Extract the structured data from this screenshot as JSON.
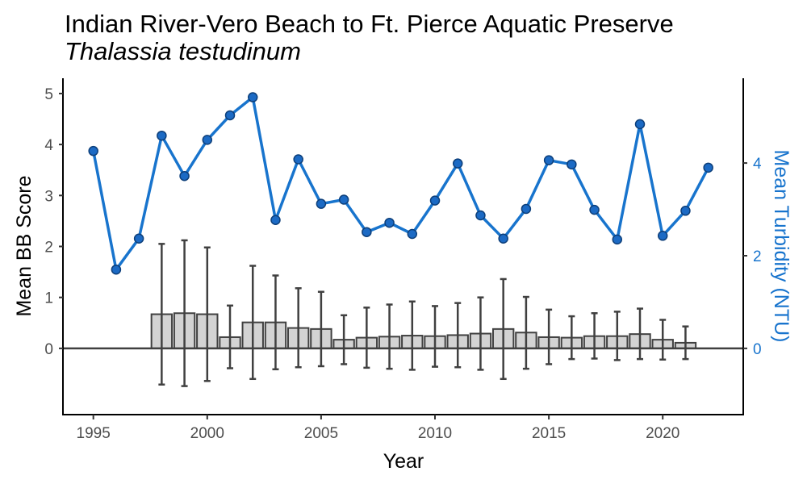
{
  "chart_data": {
    "type": "bar+line",
    "title": "Indian River-Vero Beach to Ft. Pierce Aquatic Preserve",
    "subtitle": "Thalassia testudinum",
    "xlabel": "Year",
    "ylabel_left": "Mean BB Score",
    "ylabel_right": "Mean Turbidity (NTU)",
    "x_ticks": [
      1995,
      2000,
      2005,
      2010,
      2015,
      2020
    ],
    "y_left_ticks": [
      0,
      1,
      2,
      3,
      4,
      5
    ],
    "y_right_ticks": [
      0,
      2,
      4
    ],
    "xlim": [
      1993.7,
      2023.5
    ],
    "ylim_left": [
      -1.3,
      5.3
    ],
    "ylim_right": [
      -1.43,
      5.83
    ],
    "grid": false,
    "colors": {
      "bar_fill": "#d3d3d3",
      "bar_stroke": "#404040",
      "errorbar": "#404040",
      "line": "#1874cd",
      "point_fill": "#1c6ac4",
      "point_stroke": "#0d3f7a",
      "axis": "#000000",
      "zero_line": "#404040"
    },
    "bb_score": {
      "x": [
        1998,
        1999,
        2000,
        2001,
        2002,
        2003,
        2004,
        2005,
        2006,
        2007,
        2008,
        2009,
        2010,
        2011,
        2012,
        2013,
        2014,
        2015,
        2016,
        2017,
        2018,
        2019,
        2020,
        2021
      ],
      "mean": [
        0.67,
        0.69,
        0.67,
        0.22,
        0.51,
        0.51,
        0.4,
        0.38,
        0.17,
        0.21,
        0.23,
        0.25,
        0.24,
        0.26,
        0.29,
        0.38,
        0.31,
        0.22,
        0.21,
        0.24,
        0.24,
        0.28,
        0.17,
        0.11
      ],
      "lower": [
        -0.71,
        -0.74,
        -0.64,
        -0.39,
        -0.6,
        -0.41,
        -0.37,
        -0.35,
        -0.31,
        -0.38,
        -0.4,
        -0.42,
        -0.36,
        -0.37,
        -0.42,
        -0.6,
        -0.4,
        -0.31,
        -0.21,
        -0.2,
        -0.23,
        -0.21,
        -0.22,
        -0.21
      ],
      "upper": [
        2.05,
        2.12,
        1.98,
        0.84,
        1.62,
        1.43,
        1.18,
        1.11,
        0.65,
        0.8,
        0.86,
        0.92,
        0.83,
        0.89,
        1.0,
        1.36,
        1.01,
        0.76,
        0.63,
        0.69,
        0.72,
        0.78,
        0.56,
        0.43
      ]
    },
    "turbidity": {
      "x": [
        1995,
        1996,
        1997,
        1998,
        1999,
        2000,
        2001,
        2002,
        2003,
        2004,
        2005,
        2006,
        2007,
        2008,
        2009,
        2010,
        2011,
        2012,
        2013,
        2014,
        2015,
        2016,
        2017,
        2018,
        2019,
        2020,
        2021,
        2022
      ],
      "values": [
        4.26,
        1.7,
        2.37,
        4.59,
        3.72,
        4.5,
        5.03,
        5.42,
        2.77,
        4.08,
        3.12,
        3.21,
        2.51,
        2.71,
        2.47,
        3.19,
        3.99,
        2.87,
        2.37,
        3.01,
        4.06,
        3.97,
        2.99,
        2.35,
        4.84,
        2.43,
        2.97,
        3.9
      ]
    }
  }
}
